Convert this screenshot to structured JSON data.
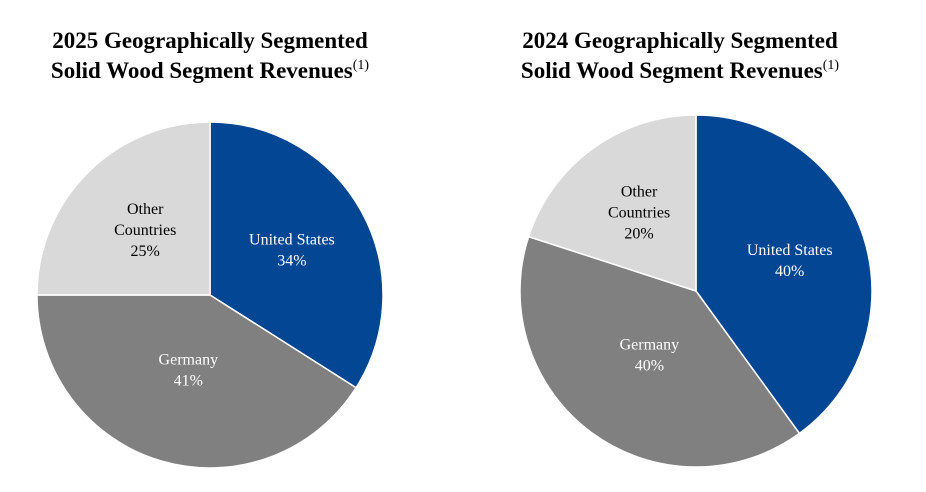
{
  "chart_data": [
    {
      "type": "pie",
      "title_line1": "2025 Geographically Segmented",
      "title_line2": "Solid Wood Segment Revenues",
      "title_note": "(1)",
      "slices": [
        {
          "label": [
            "United States"
          ],
          "value": 34,
          "value_label": "34%",
          "color": "#034694",
          "text_color": "#ffffff"
        },
        {
          "label": [
            "Germany"
          ],
          "value": 41,
          "value_label": "41%",
          "color": "#808080",
          "text_color": "#ffffff"
        },
        {
          "label": [
            "Other",
            "Countries"
          ],
          "value": 25,
          "value_label": "25%",
          "color": "#d9d9d9",
          "text_color": "#000000"
        }
      ]
    },
    {
      "type": "pie",
      "title_line1": "2024 Geographically Segmented",
      "title_line2": "Solid Wood Segment Revenues",
      "title_note": "(1)",
      "slices": [
        {
          "label": [
            "United States"
          ],
          "value": 40,
          "value_label": "40%",
          "color": "#034694",
          "text_color": "#ffffff"
        },
        {
          "label": [
            "Germany"
          ],
          "value": 40,
          "value_label": "40%",
          "color": "#808080",
          "text_color": "#ffffff"
        },
        {
          "label": [
            "Other",
            "Countries"
          ],
          "value": 20,
          "value_label": "20%",
          "color": "#d9d9d9",
          "text_color": "#000000"
        }
      ]
    }
  ]
}
